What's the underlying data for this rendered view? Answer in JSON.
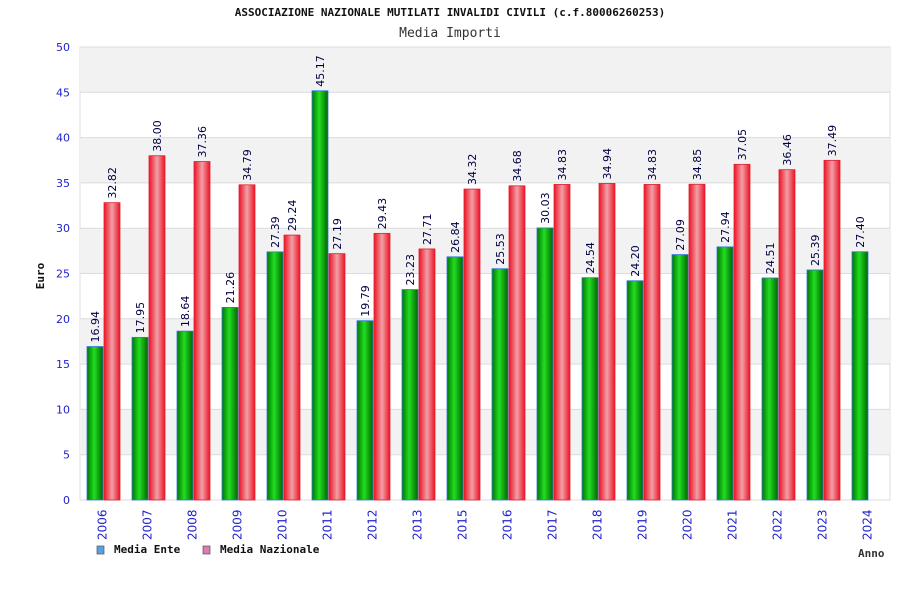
{
  "chart_data": {
    "type": "bar",
    "title": "ASSOCIAZIONE NAZIONALE MUTILATI INVALIDI CIVILI (c.f.80006260253)",
    "subtitle": "Media Importi",
    "xlabel": "Anno",
    "ylabel": "Euro",
    "ylim": [
      0,
      50
    ],
    "yticks": [
      0,
      5,
      10,
      15,
      20,
      25,
      30,
      35,
      40,
      45,
      50
    ],
    "grid": true,
    "legend_position": "bottom-left",
    "categories": [
      "2006",
      "2007",
      "2008",
      "2009",
      "2010",
      "2011",
      "2012",
      "2013",
      "2015",
      "2016",
      "2017",
      "2018",
      "2019",
      "2020",
      "2021",
      "2022",
      "2023",
      "2024"
    ],
    "series": [
      {
        "name": "Media Ente",
        "color": "#00bb00",
        "legend_color": "#5aa0e6",
        "values": [
          16.94,
          17.95,
          18.64,
          21.26,
          27.39,
          45.17,
          19.79,
          23.23,
          26.84,
          25.53,
          30.03,
          24.54,
          24.2,
          27.09,
          27.94,
          24.51,
          25.39,
          27.4
        ],
        "labels": [
          "16.94",
          "17.95",
          "18.64",
          "21.26",
          "27.39",
          "45.17",
          "19.79",
          "23.23",
          "26.84",
          "25.53",
          "30.03",
          "24.54",
          "24.20",
          "27.09",
          "27.94",
          "24.51",
          "25.39",
          "27.40"
        ]
      },
      {
        "name": "Media Nazionale",
        "color": "#ee2233",
        "legend_color": "#e07ab0",
        "values": [
          32.82,
          38.0,
          37.36,
          34.79,
          29.24,
          27.19,
          29.43,
          27.71,
          34.32,
          34.68,
          34.83,
          34.94,
          34.83,
          34.85,
          37.05,
          36.46,
          37.49,
          null
        ],
        "labels": [
          "32.82",
          "38.00",
          "37.36",
          "34.79",
          "29.24",
          "27.19",
          "29.43",
          "27.71",
          "34.32",
          "34.68",
          "34.83",
          "34.94",
          "34.83",
          "34.85",
          "37.05",
          "36.46",
          "37.49",
          null
        ]
      }
    ]
  }
}
